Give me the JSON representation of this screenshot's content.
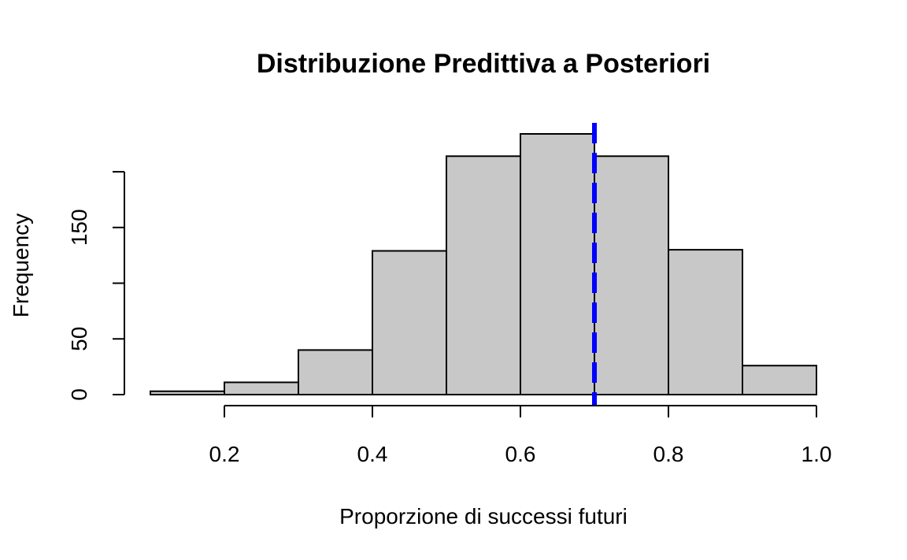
{
  "chart_data": {
    "type": "bar",
    "title": "Distribuzione Predittiva a Posteriori",
    "xlabel": "Proporzione di successi futuri",
    "ylabel": "Frequency",
    "bins": [
      {
        "x0": 0.1,
        "x1": 0.2,
        "count": 3
      },
      {
        "x0": 0.2,
        "x1": 0.3,
        "count": 11
      },
      {
        "x0": 0.3,
        "x1": 0.4,
        "count": 40
      },
      {
        "x0": 0.4,
        "x1": 0.5,
        "count": 129
      },
      {
        "x0": 0.5,
        "x1": 0.6,
        "count": 214
      },
      {
        "x0": 0.6,
        "x1": 0.7,
        "count": 234
      },
      {
        "x0": 0.7,
        "x1": 0.8,
        "count": 214
      },
      {
        "x0": 0.8,
        "x1": 0.9,
        "count": 130
      },
      {
        "x0": 0.9,
        "x1": 1.0,
        "count": 26
      }
    ],
    "x_ticks": [
      0.2,
      0.4,
      0.6,
      0.8,
      1.0
    ],
    "x_tick_labels": [
      "0.2",
      "0.4",
      "0.6",
      "0.8",
      "1.0"
    ],
    "y_ticks": [
      0,
      50,
      100,
      150,
      200
    ],
    "y_tick_labels": [
      "0",
      "50",
      "",
      "150",
      ""
    ],
    "xlim": [
      0.1,
      1.0
    ],
    "ylim": [
      0,
      234
    ],
    "grid": false,
    "reference_line": {
      "x": 0.7,
      "color": "#0000ff",
      "style": "dashed"
    },
    "bar_color": "#c8c8c8"
  }
}
